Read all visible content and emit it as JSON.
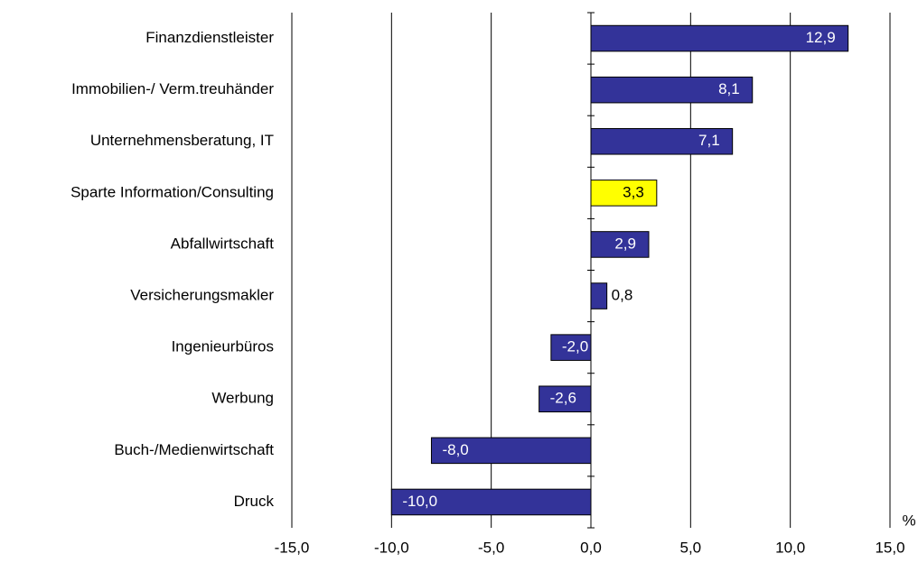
{
  "chart_data": {
    "type": "hbar",
    "categories": [
      "Finanzdienstleister",
      "Immobilien-/ Verm.treuhänder",
      "Unternehmensberatung, IT",
      "Sparte Information/Consulting",
      "Abfallwirtschaft",
      "Versicherungsmakler",
      "Ingenieurbüros",
      "Werbung",
      "Buch-/Medienwirtschaft",
      "Druck"
    ],
    "values": [
      12.9,
      8.1,
      7.1,
      3.3,
      2.9,
      0.8,
      -2.0,
      -2.6,
      -8.0,
      -10.0
    ],
    "value_labels": [
      "12,9",
      "8,1",
      "7,1",
      "3,3",
      "2,9",
      "0,8",
      "-2,0",
      "-2,6",
      "-8,0",
      "-10,0"
    ],
    "colors": [
      "#333399",
      "#333399",
      "#333399",
      "#ffff00",
      "#333399",
      "#333399",
      "#333399",
      "#333399",
      "#333399",
      "#333399"
    ],
    "x_label": "%",
    "xlim": [
      -15,
      15
    ],
    "xticks": [
      {
        "value": -15,
        "label": "-15,0"
      },
      {
        "value": -10,
        "label": "-10,0"
      },
      {
        "value": -5,
        "label": "-5,0"
      },
      {
        "value": 0,
        "label": "0,0"
      },
      {
        "value": 5,
        "label": "5,0"
      },
      {
        "value": 10,
        "label": "10,0"
      },
      {
        "value": 15,
        "label": "15,0"
      }
    ],
    "grid": true
  }
}
